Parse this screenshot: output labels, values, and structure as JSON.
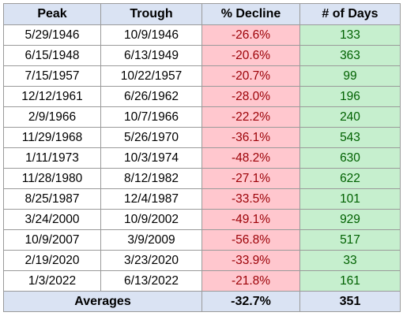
{
  "table": {
    "headers": [
      "Peak",
      "Trough",
      "% Decline",
      "# of Days"
    ],
    "rows": [
      [
        "5/29/1946",
        "10/9/1946",
        "-26.6%",
        "133"
      ],
      [
        "6/15/1948",
        "6/13/1949",
        "-20.6%",
        "363"
      ],
      [
        "7/15/1957",
        "10/22/1957",
        "-20.7%",
        "99"
      ],
      [
        "12/12/1961",
        "6/26/1962",
        "-28.0%",
        "196"
      ],
      [
        "2/9/1966",
        "10/7/1966",
        "-22.2%",
        "240"
      ],
      [
        "11/29/1968",
        "5/26/1970",
        "-36.1%",
        "543"
      ],
      [
        "1/11/1973",
        "10/3/1974",
        "-48.2%",
        "630"
      ],
      [
        "11/28/1980",
        "8/12/1982",
        "-27.1%",
        "622"
      ],
      [
        "8/25/1987",
        "12/4/1987",
        "-33.5%",
        "101"
      ],
      [
        "3/24/2000",
        "10/9/2002",
        "-49.1%",
        "929"
      ],
      [
        "10/9/2007",
        "3/9/2009",
        "-56.8%",
        "517"
      ],
      [
        "2/19/2020",
        "3/23/2020",
        "-33.9%",
        "33"
      ],
      [
        "1/3/2022",
        "6/13/2022",
        "-21.8%",
        "161"
      ]
    ],
    "footer": {
      "label": "Averages",
      "avg_decline": "-32.7%",
      "avg_days": "351"
    }
  },
  "colors": {
    "header_bg": "#dae3f3",
    "decline_bg": "#ffc7ce",
    "decline_text": "#9c0006",
    "days_bg": "#c6efce",
    "days_text": "#006100",
    "border": "#9a9a9a"
  }
}
